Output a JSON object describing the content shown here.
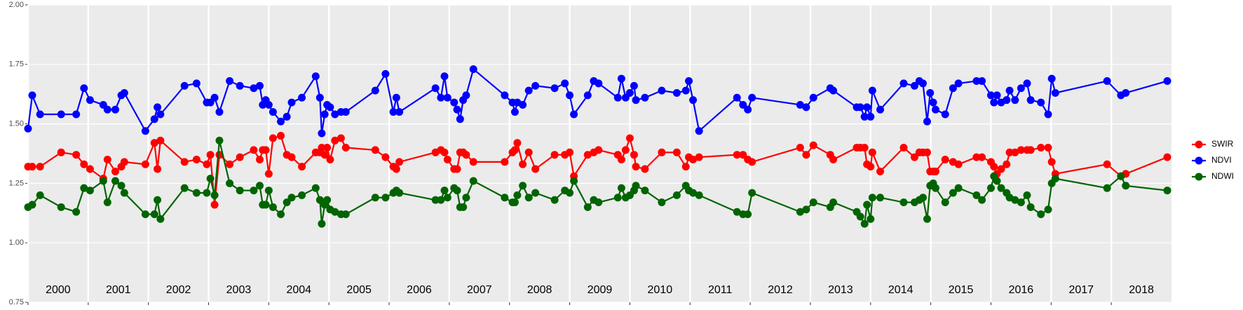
{
  "chart_data": {
    "type": "line",
    "x": [
      2000.0,
      2000.07,
      2000.2,
      2000.55,
      2000.8,
      2000.93,
      2001.03,
      2001.25,
      2001.32,
      2001.45,
      2001.55,
      2001.6,
      2001.95,
      2002.1,
      2002.15,
      2002.2,
      2002.6,
      2002.8,
      2002.97,
      2003.03,
      2003.1,
      2003.18,
      2003.35,
      2003.52,
      2003.75,
      2003.85,
      2003.9,
      2003.95,
      2004.0,
      2004.07,
      2004.2,
      2004.3,
      2004.38,
      2004.55,
      2004.78,
      2004.85,
      2004.88,
      2004.93,
      2004.97,
      2005.02,
      2005.1,
      2005.2,
      2005.28,
      2005.77,
      2005.94,
      2006.07,
      2006.12,
      2006.17,
      2006.77,
      2006.86,
      2006.92,
      2006.97,
      2007.08,
      2007.13,
      2007.18,
      2007.23,
      2007.28,
      2007.4,
      2007.92,
      2008.05,
      2008.09,
      2008.13,
      2008.22,
      2008.32,
      2008.43,
      2008.75,
      2008.92,
      2009.0,
      2009.07,
      2009.3,
      2009.4,
      2009.48,
      2009.8,
      2009.86,
      2009.93,
      2010.0,
      2010.07,
      2010.1,
      2010.25,
      2010.53,
      2010.78,
      2010.93,
      2010.98,
      2011.05,
      2011.15,
      2011.78,
      2011.88,
      2011.96,
      2012.03,
      2012.83,
      2012.93,
      2013.05,
      2013.33,
      2013.38,
      2013.77,
      2013.83,
      2013.9,
      2013.94,
      2014.0,
      2014.03,
      2014.16,
      2014.55,
      2014.73,
      2014.81,
      2014.87,
      2014.94,
      2014.99,
      2015.04,
      2015.08,
      2015.24,
      2015.37,
      2015.46,
      2015.76,
      2015.85,
      2016.0,
      2016.05,
      2016.1,
      2016.17,
      2016.26,
      2016.31,
      2016.4,
      2016.5,
      2016.6,
      2016.66,
      2016.83,
      2016.95,
      2017.01,
      2017.07,
      2017.93,
      2018.16,
      2018.24,
      2018.93
    ],
    "series": [
      {
        "name": "SWIR",
        "color": "#ff0000",
        "values": [
          1.32,
          1.32,
          1.32,
          1.38,
          1.37,
          1.33,
          1.31,
          1.27,
          1.35,
          1.3,
          1.32,
          1.34,
          1.33,
          1.42,
          1.31,
          1.43,
          1.34,
          1.35,
          1.33,
          1.37,
          1.16,
          1.37,
          1.33,
          1.36,
          1.39,
          1.35,
          1.39,
          1.39,
          1.29,
          1.44,
          1.45,
          1.37,
          1.36,
          1.32,
          1.38,
          1.38,
          1.4,
          1.37,
          1.4,
          1.35,
          1.43,
          1.44,
          1.4,
          1.39,
          1.36,
          1.32,
          1.31,
          1.34,
          1.38,
          1.39,
          1.38,
          1.35,
          1.31,
          1.31,
          1.38,
          1.38,
          1.37,
          1.34,
          1.34,
          1.38,
          1.39,
          1.42,
          1.33,
          1.38,
          1.31,
          1.37,
          1.37,
          1.38,
          1.28,
          1.37,
          1.38,
          1.39,
          1.37,
          1.35,
          1.39,
          1.44,
          1.37,
          1.32,
          1.31,
          1.38,
          1.38,
          1.32,
          1.36,
          1.35,
          1.36,
          1.37,
          1.37,
          1.35,
          1.34,
          1.4,
          1.37,
          1.41,
          1.37,
          1.35,
          1.4,
          1.4,
          1.4,
          1.33,
          1.32,
          1.38,
          1.3,
          1.4,
          1.36,
          1.38,
          1.38,
          1.38,
          1.3,
          1.3,
          1.3,
          1.35,
          1.34,
          1.33,
          1.36,
          1.36,
          1.34,
          1.32,
          1.29,
          1.31,
          1.33,
          1.38,
          1.38,
          1.39,
          1.39,
          1.39,
          1.4,
          1.4,
          1.34,
          1.29,
          1.33,
          1.28,
          1.29,
          1.36
        ]
      },
      {
        "name": "NDVI",
        "color": "#0000ff",
        "values": [
          1.48,
          1.62,
          1.54,
          1.54,
          1.54,
          1.65,
          1.6,
          1.58,
          1.56,
          1.56,
          1.62,
          1.63,
          1.47,
          1.52,
          1.57,
          1.54,
          1.66,
          1.67,
          1.59,
          1.59,
          1.61,
          1.55,
          1.68,
          1.66,
          1.65,
          1.66,
          1.58,
          1.6,
          1.58,
          1.55,
          1.51,
          1.53,
          1.59,
          1.61,
          1.7,
          1.61,
          1.46,
          1.54,
          1.58,
          1.57,
          1.54,
          1.55,
          1.55,
          1.64,
          1.71,
          1.55,
          1.61,
          1.55,
          1.65,
          1.61,
          1.7,
          1.61,
          1.59,
          1.56,
          1.52,
          1.6,
          1.62,
          1.73,
          1.62,
          1.59,
          1.55,
          1.59,
          1.58,
          1.64,
          1.66,
          1.65,
          1.67,
          1.62,
          1.54,
          1.62,
          1.68,
          1.67,
          1.61,
          1.69,
          1.61,
          1.63,
          1.66,
          1.6,
          1.61,
          1.64,
          1.63,
          1.64,
          1.68,
          1.6,
          1.47,
          1.61,
          1.58,
          1.56,
          1.61,
          1.58,
          1.57,
          1.61,
          1.65,
          1.64,
          1.57,
          1.57,
          1.53,
          1.57,
          1.53,
          1.64,
          1.56,
          1.67,
          1.66,
          1.68,
          1.67,
          1.51,
          1.63,
          1.59,
          1.56,
          1.54,
          1.65,
          1.67,
          1.68,
          1.68,
          1.62,
          1.59,
          1.62,
          1.59,
          1.6,
          1.64,
          1.6,
          1.65,
          1.67,
          1.6,
          1.59,
          1.54,
          1.69,
          1.63,
          1.68,
          1.62,
          1.63,
          1.68
        ]
      },
      {
        "name": "NDWI",
        "color": "#006400",
        "values": [
          1.15,
          1.16,
          1.2,
          1.15,
          1.13,
          1.23,
          1.22,
          1.26,
          1.17,
          1.26,
          1.24,
          1.21,
          1.12,
          1.12,
          1.18,
          1.1,
          1.23,
          1.21,
          1.21,
          1.27,
          1.2,
          1.43,
          1.25,
          1.22,
          1.22,
          1.24,
          1.16,
          1.16,
          1.22,
          1.15,
          1.12,
          1.17,
          1.19,
          1.2,
          1.23,
          1.18,
          1.08,
          1.16,
          1.18,
          1.14,
          1.13,
          1.12,
          1.12,
          1.19,
          1.19,
          1.21,
          1.22,
          1.21,
          1.18,
          1.18,
          1.22,
          1.19,
          1.23,
          1.22,
          1.15,
          1.15,
          1.19,
          1.26,
          1.19,
          1.17,
          1.17,
          1.2,
          1.24,
          1.19,
          1.21,
          1.18,
          1.22,
          1.21,
          1.26,
          1.15,
          1.18,
          1.17,
          1.19,
          1.23,
          1.19,
          1.2,
          1.22,
          1.24,
          1.22,
          1.17,
          1.2,
          1.24,
          1.22,
          1.21,
          1.2,
          1.13,
          1.12,
          1.12,
          1.21,
          1.13,
          1.14,
          1.17,
          1.15,
          1.17,
          1.13,
          1.11,
          1.08,
          1.16,
          1.1,
          1.19,
          1.19,
          1.17,
          1.17,
          1.18,
          1.19,
          1.1,
          1.24,
          1.25,
          1.23,
          1.17,
          1.21,
          1.23,
          1.2,
          1.18,
          1.23,
          1.28,
          1.26,
          1.23,
          1.21,
          1.19,
          1.18,
          1.17,
          1.2,
          1.15,
          1.12,
          1.14,
          1.25,
          1.27,
          1.23,
          1.28,
          1.24,
          1.22
        ]
      }
    ],
    "xlim": [
      2000,
      2019
    ],
    "xticks": [
      {
        "value": 2000.5,
        "label": "2000"
      },
      {
        "value": 2001.5,
        "label": "2001"
      },
      {
        "value": 2002.5,
        "label": "2002"
      },
      {
        "value": 2003.5,
        "label": "2003"
      },
      {
        "value": 2004.5,
        "label": "2004"
      },
      {
        "value": 2005.5,
        "label": "2005"
      },
      {
        "value": 2006.5,
        "label": "2006"
      },
      {
        "value": 2007.5,
        "label": "2007"
      },
      {
        "value": 2008.5,
        "label": "2008"
      },
      {
        "value": 2009.5,
        "label": "2009"
      },
      {
        "value": 2010.5,
        "label": "2010"
      },
      {
        "value": 2011.5,
        "label": "2011"
      },
      {
        "value": 2012.5,
        "label": "2012"
      },
      {
        "value": 2013.5,
        "label": "2013"
      },
      {
        "value": 2014.5,
        "label": "2014"
      },
      {
        "value": 2015.5,
        "label": "2015"
      },
      {
        "value": 2016.5,
        "label": "2016"
      },
      {
        "value": 2017.5,
        "label": "2017"
      },
      {
        "value": 2018.5,
        "label": "2018"
      }
    ],
    "ylim": [
      0.75,
      2.0
    ],
    "yticks": [
      0.75,
      {
        "value": 1,
        "label": "1.00"
      },
      1.25,
      {
        "value": 1.5,
        "label": "1.50"
      },
      1.75,
      {
        "value": 2,
        "label": "2.00"
      }
    ],
    "grid": true
  }
}
